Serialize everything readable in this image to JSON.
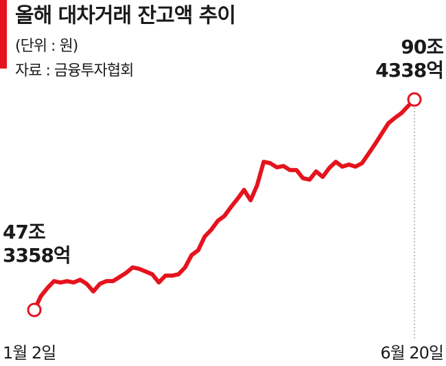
{
  "chart_data": {
    "type": "line",
    "title": "올해 대차거래 잔고액 추이",
    "subtitle": "(단위 : 원)",
    "source": "자료 : 금융투자협회",
    "categories": [
      "1월 2일",
      null,
      null,
      null,
      null,
      null,
      null,
      null,
      null,
      null,
      null,
      null,
      null,
      null,
      null,
      null,
      null,
      null,
      null,
      null,
      null,
      null,
      null,
      null,
      null,
      null,
      null,
      null,
      null,
      null,
      null,
      null,
      null,
      null,
      null,
      null,
      null,
      null,
      null,
      null,
      null,
      null,
      null,
      null,
      null,
      null,
      null,
      null,
      null,
      null,
      null,
      null,
      null,
      null,
      null,
      null,
      null,
      null,
      "6월 20일"
    ],
    "series": [
      {
        "color": "#e5131d",
        "values": [
          47.3358,
          50.15,
          51.83,
          53.24,
          52.96,
          53.24,
          52.96,
          53.52,
          52.68,
          51.13,
          52.68,
          53.24,
          53.24,
          54.08,
          54.92,
          56.04,
          55.76,
          55.2,
          54.64,
          52.96,
          54.36,
          54.36,
          54.64,
          56.04,
          58.57,
          59.55,
          62.36,
          63.77,
          65.59,
          66.57,
          68.4,
          70.08,
          71.91,
          69.8,
          72.89,
          77.67,
          77.39,
          76.54,
          76.82,
          75.98,
          75.98,
          74.3,
          74.02,
          75.7,
          74.58,
          76.4,
          77.67,
          76.68,
          77.1,
          76.68,
          77.39,
          79.35,
          81.32,
          83.42,
          85.53,
          86.65,
          87.63,
          89.04,
          90.4338
        ]
      }
    ],
    "annotations": [
      {
        "index": 0,
        "lines": [
          "47조",
          "3358억"
        ]
      },
      {
        "index": 58,
        "lines": [
          "90조",
          "4338억"
        ]
      }
    ],
    "ylim": [
      44,
      92
    ]
  }
}
